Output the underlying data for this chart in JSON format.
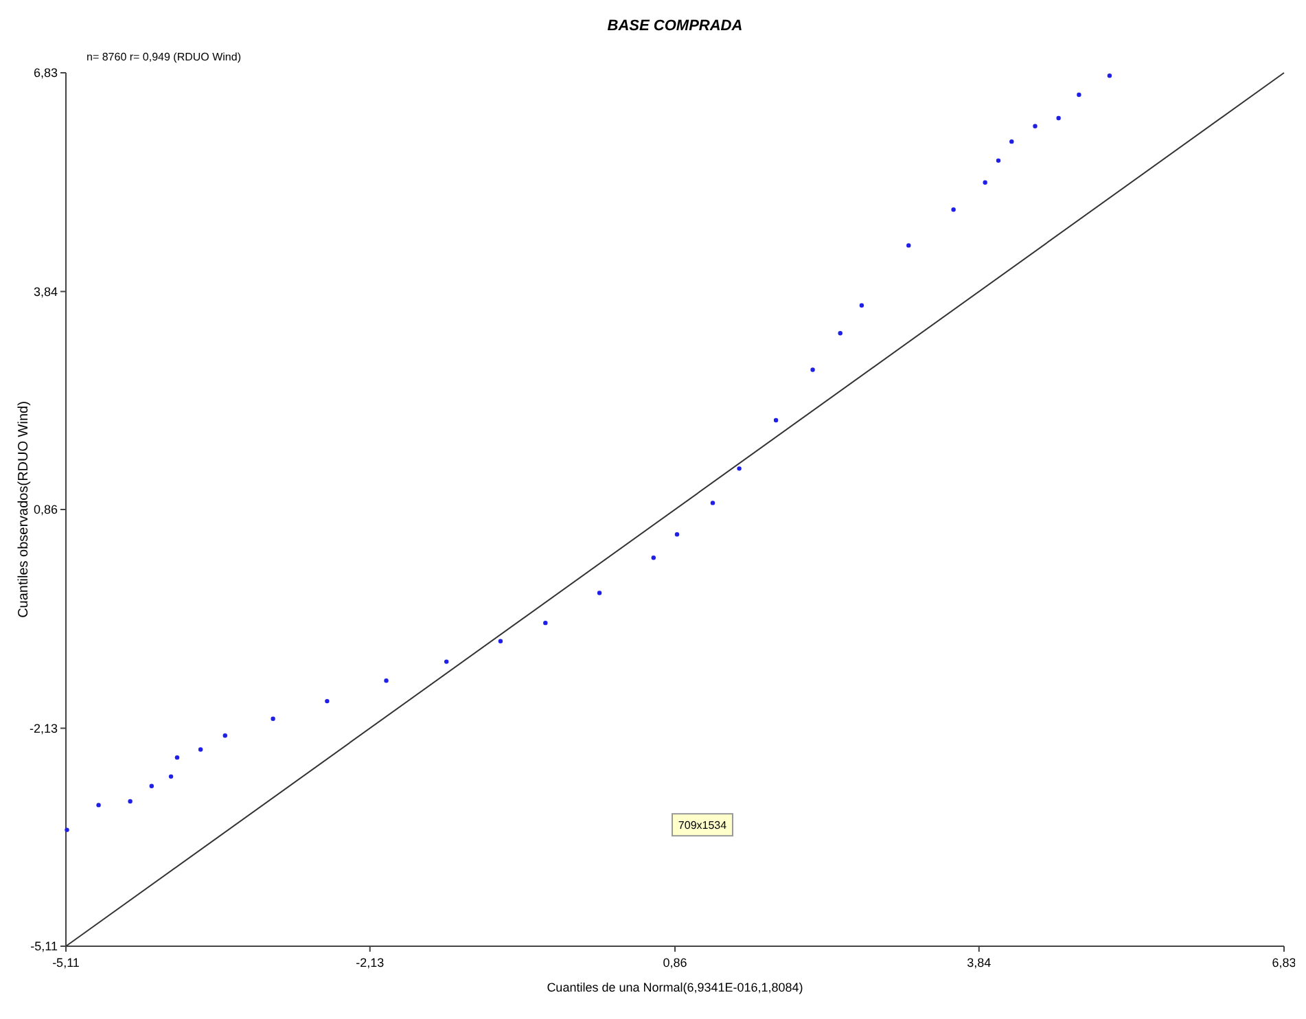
{
  "chart_data": {
    "type": "scatter",
    "title": "BASE COMPRADA",
    "xlabel": "Cuantiles de una Normal(6,9341E-016,1,8084)",
    "ylabel": "Cuantiles observados(RDUO Wind)",
    "annotations": [
      "n= 8760 r= 0,949 (RDUO Wind)",
      "709x1534"
    ],
    "xlim": [
      -5.11,
      6.83
    ],
    "ylim": [
      -5.11,
      6.83
    ],
    "xticks": [
      {
        "value": -5.11,
        "label": "-5,11"
      },
      {
        "value": -2.13,
        "label": "-2,13"
      },
      {
        "value": 0.86,
        "label": "0,86"
      },
      {
        "value": 3.84,
        "label": "3,84"
      },
      {
        "value": 6.83,
        "label": "6,83"
      }
    ],
    "yticks": [
      {
        "value": -5.11,
        "label": "-5,11"
      },
      {
        "value": -2.13,
        "label": "-2,13"
      },
      {
        "value": 0.86,
        "label": "0,86"
      },
      {
        "value": 3.84,
        "label": "3,84"
      },
      {
        "value": 6.83,
        "label": "6,83"
      }
    ],
    "grid": false,
    "marker": "circle",
    "series": [
      {
        "color": "#1f1fe8",
        "x": [
          -5.1,
          -4.79,
          -4.48,
          -4.27,
          -4.08,
          -4.02,
          -3.79,
          -3.55,
          -3.08,
          -2.55,
          -1.97,
          -1.38,
          -0.85,
          -0.41,
          0.12,
          0.65,
          0.88,
          1.23,
          1.49,
          1.85,
          2.21,
          2.48,
          2.69,
          3.15,
          3.59,
          3.9,
          4.03,
          4.16,
          4.39,
          4.62,
          4.82,
          5.12
        ],
        "values": [
          -3.52,
          -3.18,
          -3.13,
          -2.92,
          -2.79,
          -2.53,
          -2.42,
          -2.23,
          -2.0,
          -1.76,
          -1.48,
          -1.22,
          -0.94,
          -0.69,
          -0.28,
          0.2,
          0.52,
          0.95,
          1.42,
          2.08,
          2.77,
          3.27,
          3.65,
          4.47,
          4.96,
          5.33,
          5.63,
          5.89,
          6.1,
          6.21,
          6.53,
          6.79
        ]
      },
      {
        "type": "line",
        "color": "#333333",
        "x": [
          -5.11,
          6.83
        ],
        "values": [
          -5.11,
          6.83
        ],
        "marker": "none",
        "line_style": "solid"
      }
    ]
  }
}
